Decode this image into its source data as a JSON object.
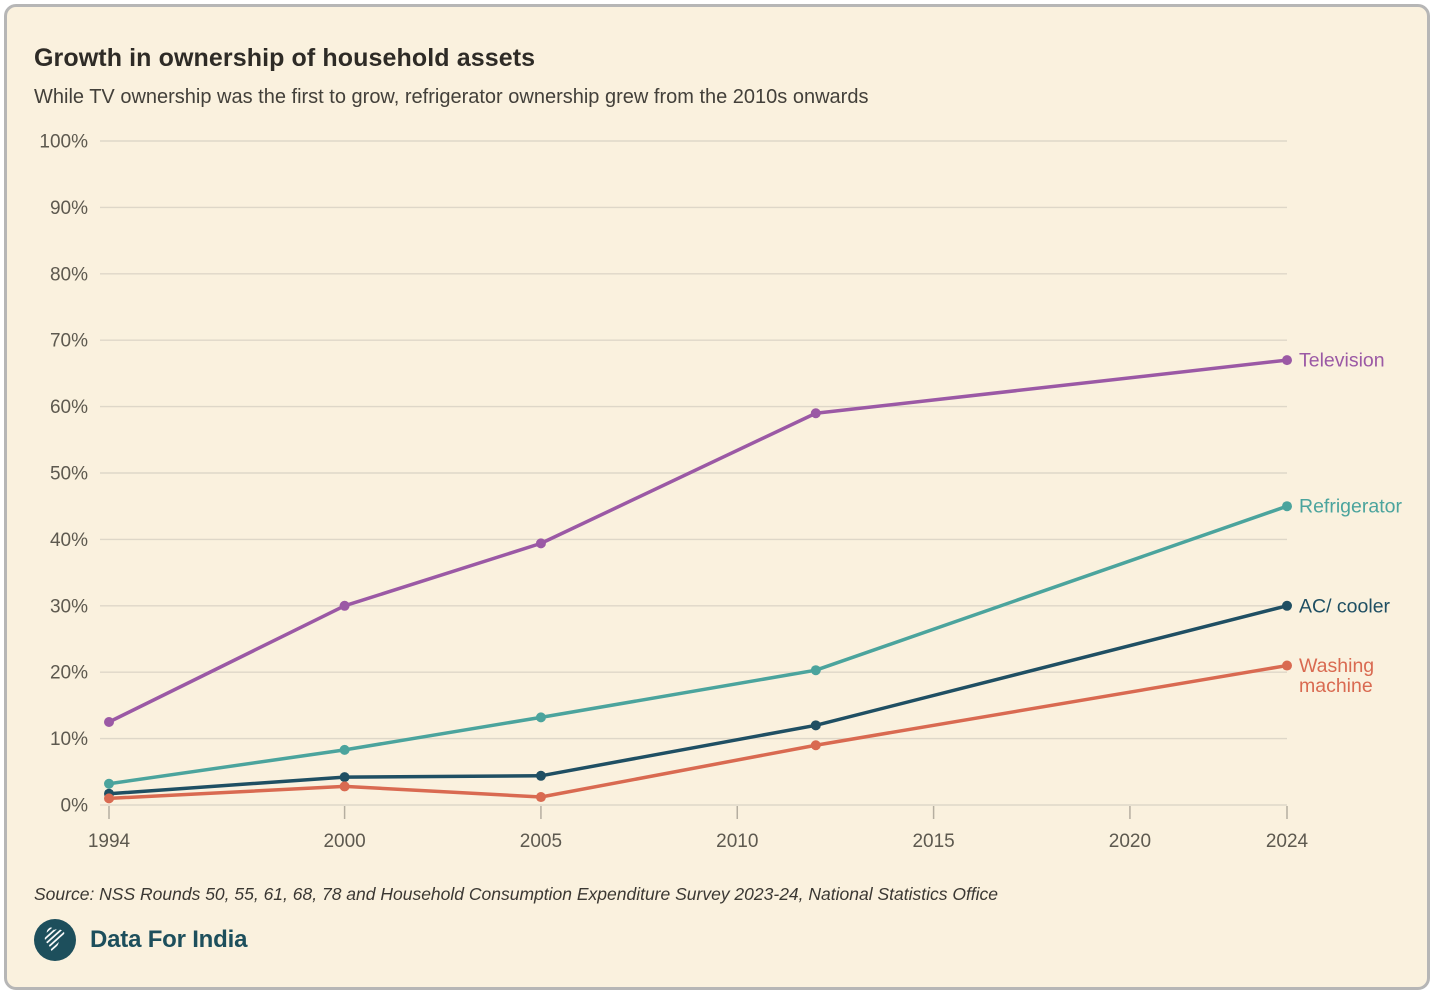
{
  "header": {
    "title": "Growth in ownership of household assets",
    "subtitle": "While TV ownership was the first to grow, refrigerator ownership grew from the 2010s onwards"
  },
  "footer": {
    "source": "Source: NSS Rounds 50, 55, 61, 68, 78 and Household Consumption Expenditure Survey 2023-24, National Statistics Office",
    "brand": "Data For India"
  },
  "colors": {
    "background": "#faf1de",
    "card_border": "#b6b6b6",
    "grid": "#ded7c8",
    "axis_text": "#5d594f",
    "tick": "#b5aea0",
    "title_text": "#2e2b26",
    "subtitle_text": "#43403a",
    "source_text": "#3b3833",
    "brand": "#1d4f5c"
  },
  "chart_data": {
    "type": "line",
    "x": [
      1994,
      2000,
      2005,
      2012,
      2024
    ],
    "xlim": [
      1994,
      2024
    ],
    "ylim": [
      0,
      100
    ],
    "x_ticks": [
      1994,
      2000,
      2005,
      2010,
      2015,
      2020,
      2024
    ],
    "x_tick_labels": [
      "1994",
      "2000",
      "2005",
      "2010",
      "2015",
      "2020",
      "2024"
    ],
    "y_ticks": [
      0,
      10,
      20,
      30,
      40,
      50,
      60,
      70,
      80,
      90,
      100
    ],
    "y_tick_suffix": "%",
    "grid": "horizontal",
    "legend_position": "right-of-line-ends",
    "series": [
      {
        "name": "Television",
        "label_lines": [
          "Television"
        ],
        "color": "#9b59a5",
        "values": [
          12.5,
          30,
          39.4,
          59,
          67
        ]
      },
      {
        "name": "Refrigerator",
        "label_lines": [
          "Refrigerator"
        ],
        "color": "#4ba49d",
        "values": [
          3.2,
          8.3,
          13.2,
          20.3,
          45
        ]
      },
      {
        "name": "AC/ cooler",
        "label_lines": [
          "AC/ cooler"
        ],
        "color": "#1f4f63",
        "values": [
          1.7,
          4.2,
          4.4,
          12,
          30
        ]
      },
      {
        "name": "Washing machine",
        "label_lines": [
          "Washing",
          "machine"
        ],
        "color": "#d96a51",
        "values": [
          1.0,
          2.8,
          1.2,
          9,
          21
        ]
      }
    ]
  }
}
